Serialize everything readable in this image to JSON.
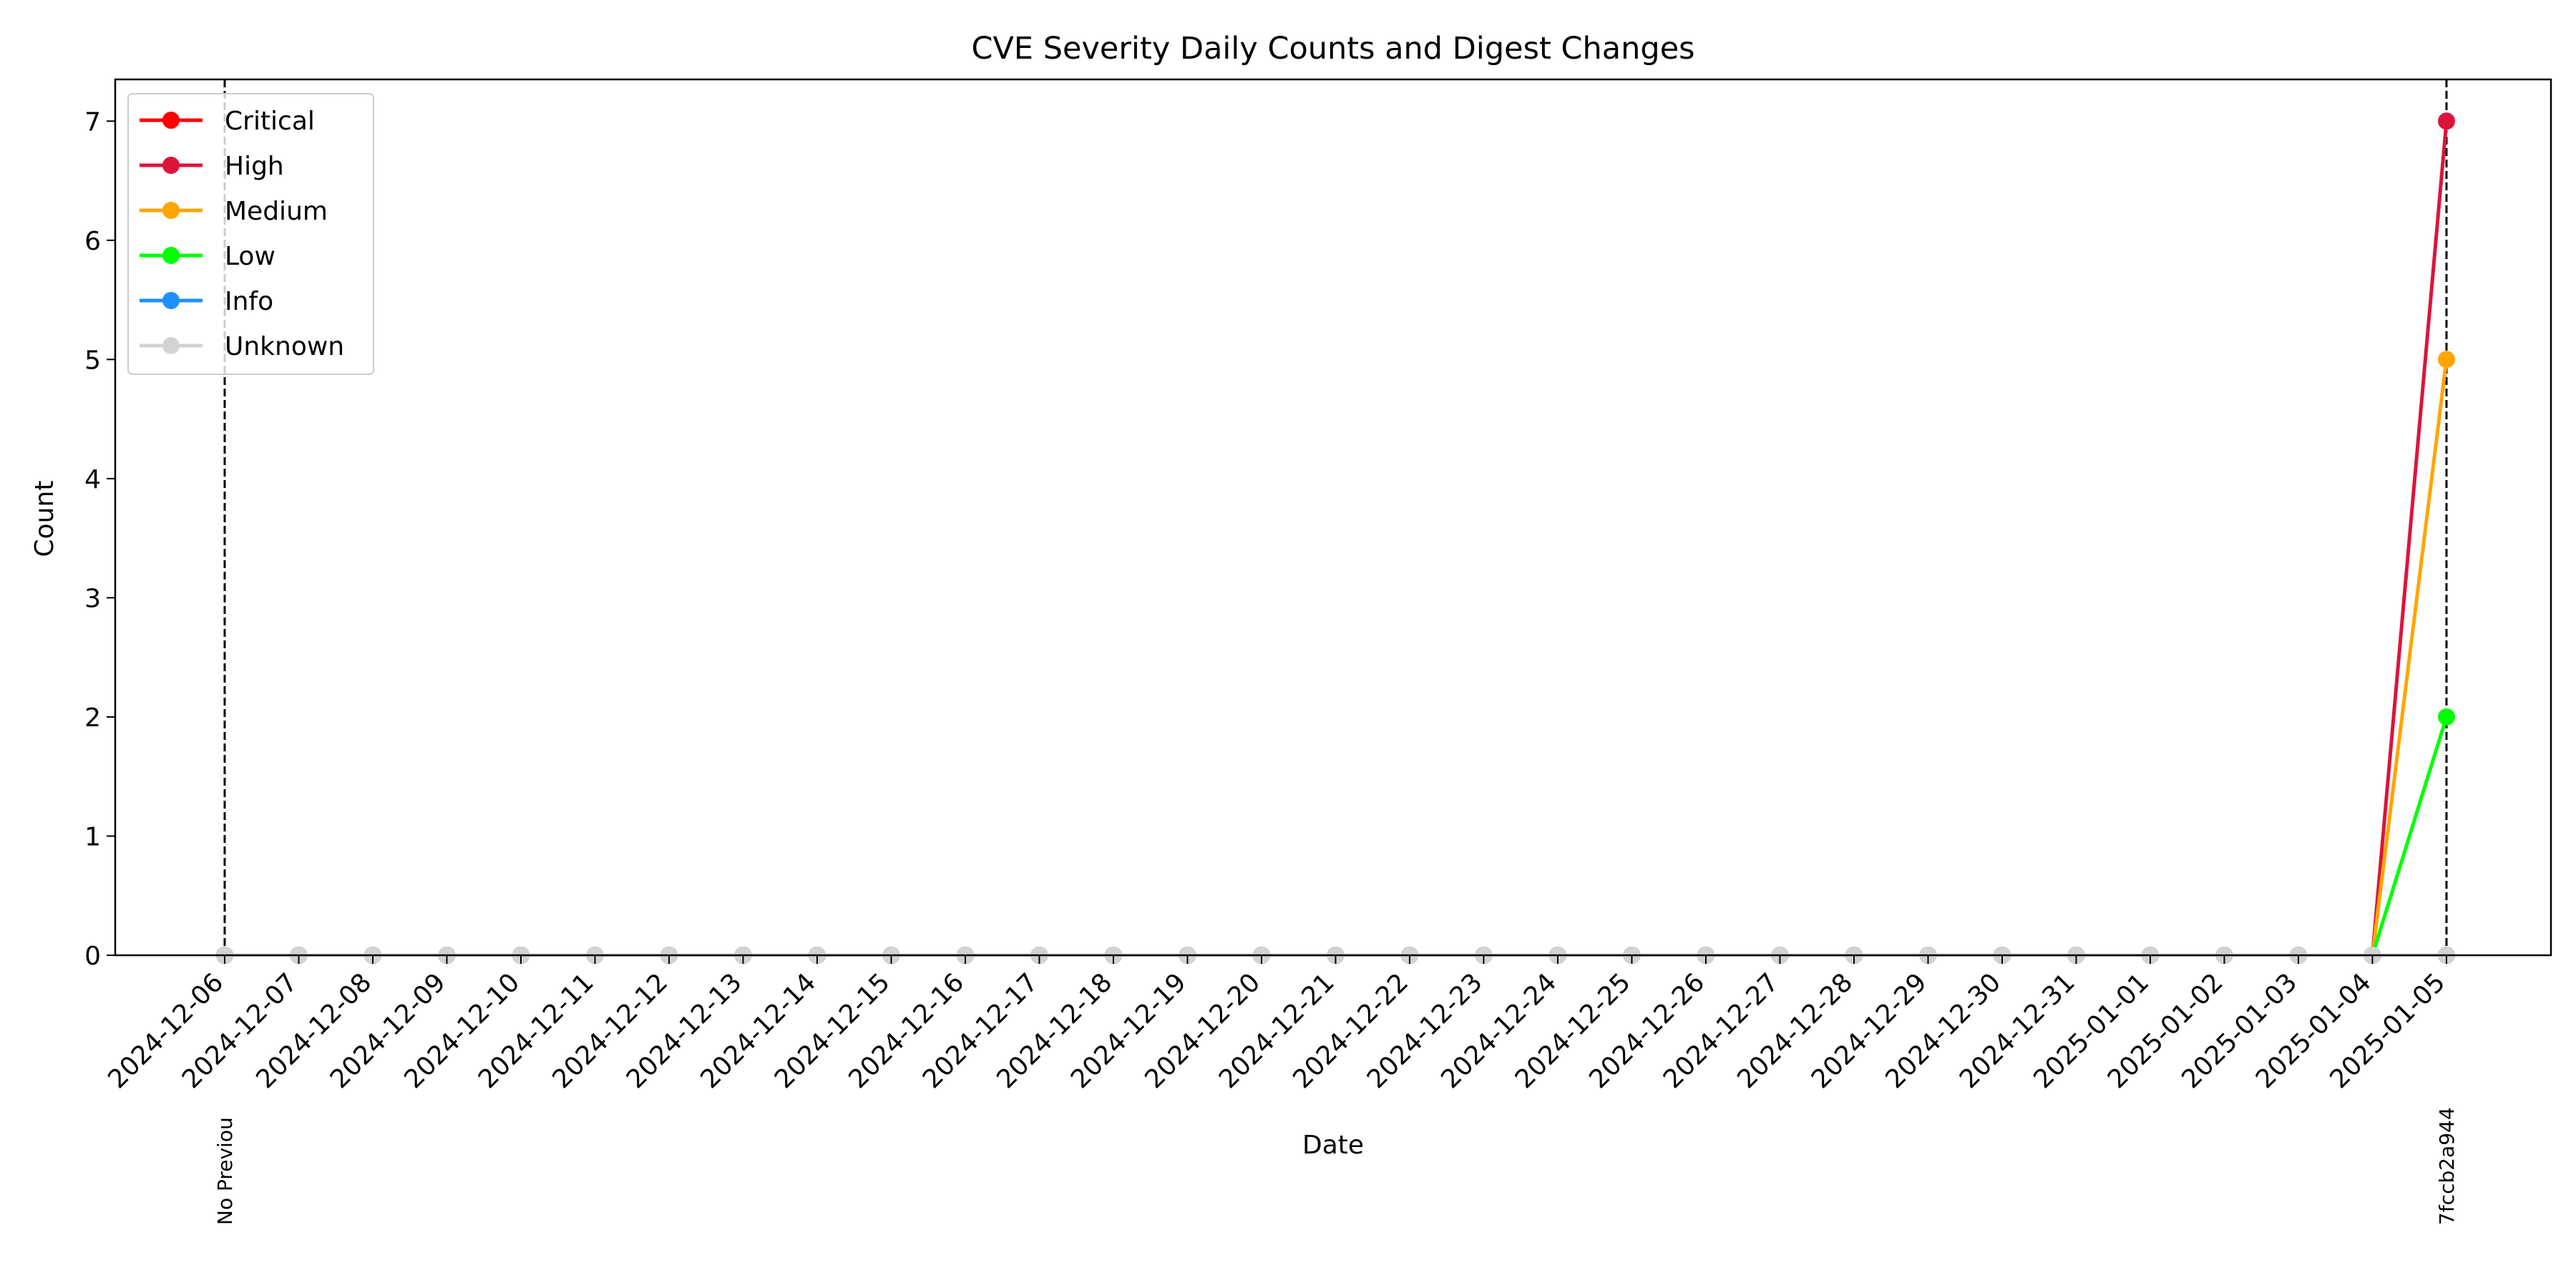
{
  "chart_data": {
    "type": "line",
    "title": "CVE Severity Daily Counts and Digest Changes",
    "xlabel": "Date",
    "ylabel": "Count",
    "ylim": [
      0,
      7.35
    ],
    "yticks": [
      0,
      1,
      2,
      3,
      4,
      5,
      6,
      7
    ],
    "grid": false,
    "legend_position": "top-left",
    "categories": [
      "2024-12-06",
      "2024-12-07",
      "2024-12-08",
      "2024-12-09",
      "2024-12-10",
      "2024-12-11",
      "2024-12-12",
      "2024-12-13",
      "2024-12-14",
      "2024-12-15",
      "2024-12-16",
      "2024-12-17",
      "2024-12-18",
      "2024-12-19",
      "2024-12-20",
      "2024-12-21",
      "2024-12-22",
      "2024-12-23",
      "2024-12-24",
      "2024-12-25",
      "2024-12-26",
      "2024-12-27",
      "2024-12-28",
      "2024-12-29",
      "2024-12-30",
      "2024-12-31",
      "2025-01-01",
      "2025-01-02",
      "2025-01-03",
      "2025-01-04",
      "2025-01-05"
    ],
    "series": [
      {
        "name": "Critical",
        "color": "#ff0000",
        "values": [
          0,
          0,
          0,
          0,
          0,
          0,
          0,
          0,
          0,
          0,
          0,
          0,
          0,
          0,
          0,
          0,
          0,
          0,
          0,
          0,
          0,
          0,
          0,
          0,
          0,
          0,
          0,
          0,
          0,
          0,
          0
        ]
      },
      {
        "name": "High",
        "color": "#dc143c",
        "values": [
          0,
          0,
          0,
          0,
          0,
          0,
          0,
          0,
          0,
          0,
          0,
          0,
          0,
          0,
          0,
          0,
          0,
          0,
          0,
          0,
          0,
          0,
          0,
          0,
          0,
          0,
          0,
          0,
          0,
          0,
          7
        ]
      },
      {
        "name": "Medium",
        "color": "#ffa500",
        "values": [
          0,
          0,
          0,
          0,
          0,
          0,
          0,
          0,
          0,
          0,
          0,
          0,
          0,
          0,
          0,
          0,
          0,
          0,
          0,
          0,
          0,
          0,
          0,
          0,
          0,
          0,
          0,
          0,
          0,
          0,
          5
        ]
      },
      {
        "name": "Low",
        "color": "#00ff00",
        "values": [
          0,
          0,
          0,
          0,
          0,
          0,
          0,
          0,
          0,
          0,
          0,
          0,
          0,
          0,
          0,
          0,
          0,
          0,
          0,
          0,
          0,
          0,
          0,
          0,
          0,
          0,
          0,
          0,
          0,
          0,
          2
        ]
      },
      {
        "name": "Info",
        "color": "#1e90ff",
        "values": [
          0,
          0,
          0,
          0,
          0,
          0,
          0,
          0,
          0,
          0,
          0,
          0,
          0,
          0,
          0,
          0,
          0,
          0,
          0,
          0,
          0,
          0,
          0,
          0,
          0,
          0,
          0,
          0,
          0,
          0,
          0
        ]
      },
      {
        "name": "Unknown",
        "color": "#d3d3d3",
        "values": [
          0,
          0,
          0,
          0,
          0,
          0,
          0,
          0,
          0,
          0,
          0,
          0,
          0,
          0,
          0,
          0,
          0,
          0,
          0,
          0,
          0,
          0,
          0,
          0,
          0,
          0,
          0,
          0,
          0,
          0,
          0
        ]
      }
    ],
    "digest_changes": [
      {
        "date": "2024-12-06",
        "label": "No Previou"
      },
      {
        "date": "2025-01-05",
        "label": "7fccb2a944"
      }
    ]
  }
}
